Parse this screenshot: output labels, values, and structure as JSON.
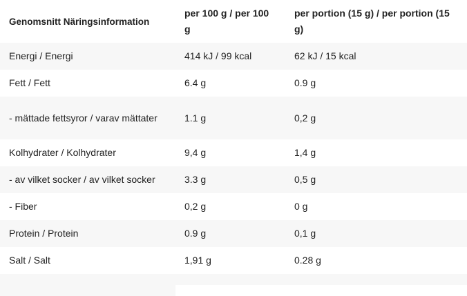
{
  "table": {
    "headers": [
      "Genomsnitt Näringsinformation",
      "per 100 g / per 100 g",
      "per portion (15 g) / per portion (15 g)"
    ],
    "rows": [
      [
        "Energi / Energi",
        "414 kJ / 99 kcal",
        "62 kJ / 15 kcal"
      ],
      [
        "Fett / Fett",
        "6.4 g",
        "0.9 g"
      ],
      [
        "- mättade fettsyror / varav mättater",
        "1.1 g",
        "0,2 g"
      ],
      [
        "Kolhydrater / Kolhydrater",
        "9,4 g",
        "1,4 g"
      ],
      [
        "- av vilket socker / av vilket socker",
        "3.3 g",
        "0,5 g"
      ],
      [
        "- Fiber",
        "0,2 g",
        "0 g"
      ],
      [
        "Protein / Protein",
        "0.9 g",
        "0,1 g"
      ],
      [
        "Salt / Salt",
        "1,91 g",
        "0.28 g"
      ]
    ]
  }
}
